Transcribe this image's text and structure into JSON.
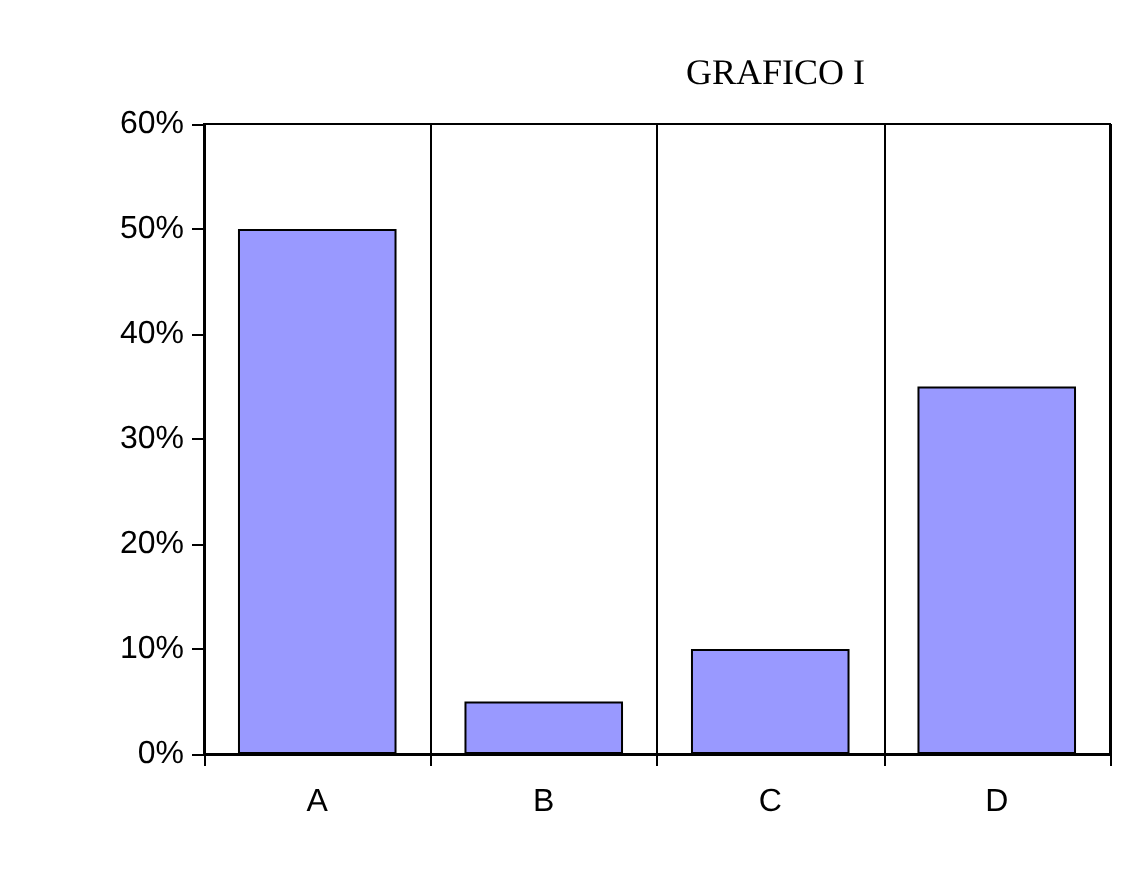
{
  "chart_data": {
    "type": "bar",
    "title": "GRAFICO I",
    "categories": [
      "A",
      "B",
      "C",
      "D"
    ],
    "values": [
      50,
      5,
      10,
      35
    ],
    "color": "#9999ff",
    "ylim": [
      0,
      60
    ],
    "yticks": [
      {
        "value": 0,
        "label": "0%"
      },
      {
        "value": 10,
        "label": "10%"
      },
      {
        "value": 20,
        "label": "20%"
      },
      {
        "value": 30,
        "label": "30%"
      },
      {
        "value": 40,
        "label": "40%"
      },
      {
        "value": 50,
        "label": "50%"
      },
      {
        "value": 60,
        "label": "60%"
      }
    ],
    "grid": "x"
  }
}
